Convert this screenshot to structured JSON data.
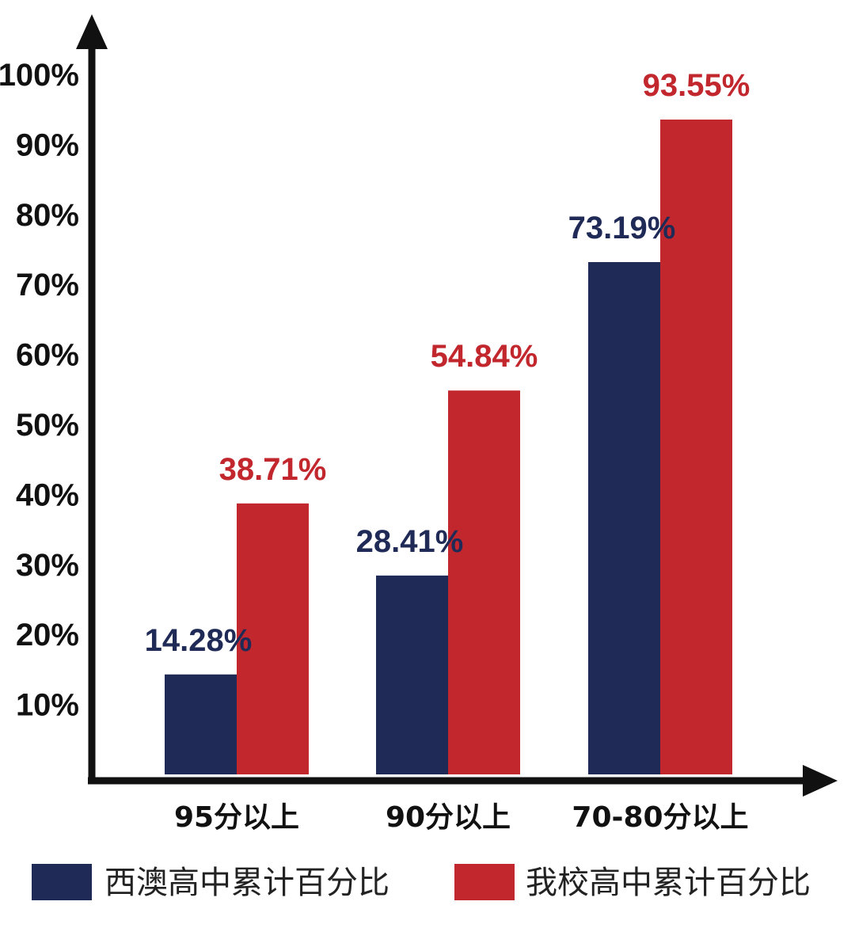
{
  "chart_data": {
    "type": "bar",
    "categories": [
      "95分以上",
      "90分以上",
      "70-80分以上"
    ],
    "series": [
      {
        "name": "西澳高中累计百分比",
        "color": "#1F2A56",
        "values": [
          14.28,
          28.41,
          73.19
        ],
        "labels": [
          "14.28%",
          "28.41%",
          "73.19%"
        ]
      },
      {
        "name": "我校高中累计百分比",
        "color": "#C1272D",
        "values": [
          38.71,
          54.84,
          93.55
        ],
        "labels": [
          "38.71%",
          "54.84%",
          "93.55%"
        ]
      }
    ],
    "y_ticks": [
      "10%",
      "20%",
      "30%",
      "40%",
      "50%",
      "60%",
      "70%",
      "80%",
      "90%",
      "100%"
    ],
    "ylim": [
      0,
      100
    ],
    "grid": false,
    "legend_position": "bottom",
    "axis_color": "#111111"
  }
}
